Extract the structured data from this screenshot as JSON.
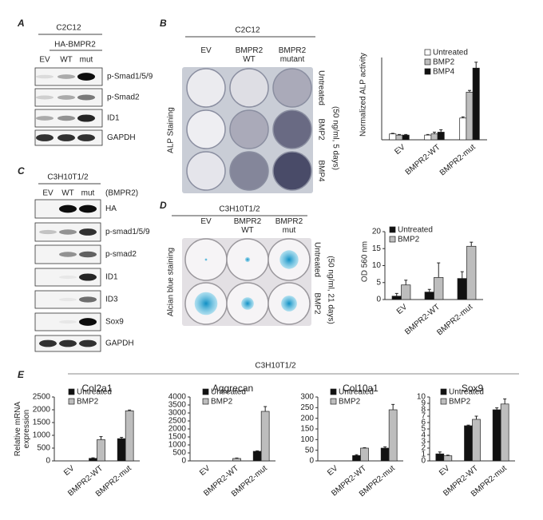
{
  "panel_labels": [
    "A",
    "B",
    "C",
    "D",
    "E"
  ],
  "blot_a": {
    "cell_line": "C2C12",
    "construct": "HA-BMPR2",
    "lanes": [
      "EV",
      "WT",
      "mut"
    ],
    "rows": [
      "p-Smad1/5/9",
      "p-Smad2",
      "ID1",
      "GAPDH"
    ]
  },
  "blot_c": {
    "cell_line": "C3H10T1/2",
    "lanes": [
      "EV",
      "WT",
      "mut"
    ],
    "lane_note": "(BMPR2)",
    "rows": [
      "HA",
      "p-smad1/5/9",
      "p-smad2",
      "ID1",
      "ID3",
      "Sox9",
      "GAPDH"
    ]
  },
  "staining_b": {
    "cell_line": "C2C12",
    "columns": [
      "EV",
      "BMPR2 WT",
      "BMPR2 mutant"
    ],
    "rows": [
      "Untreated",
      "BMP2",
      "BMP4"
    ],
    "stain": "ALP Staining",
    "condition": "(50 ng/ml, 5 days)"
  },
  "staining_d": {
    "cell_line": "C3H10T1/2",
    "columns": [
      "EV",
      "BMPR2 WT",
      "BMPR2 mut"
    ],
    "rows": [
      "Untreated",
      "BMP2"
    ],
    "stain": "Alcian blue staining",
    "condition": "(50 ng/ml, 21 days)"
  },
  "panel_e": {
    "title": "C3H10T1/2"
  },
  "chart_data": [
    {
      "type": "bar",
      "ylabel": "Normalized ALP activity",
      "categories": [
        "EV",
        "BMPR2-WT",
        "BMPR2-mut"
      ],
      "ylim": [
        0,
        14
      ],
      "legend": "upper left",
      "series": [
        {
          "name": "Untreated",
          "color": "#ffffff",
          "values": [
            1.0,
            0.8,
            3.7
          ],
          "errors": [
            0.1,
            0.1,
            0.2
          ]
        },
        {
          "name": "BMP2",
          "color": "#bdbdbd",
          "values": [
            0.8,
            1.0,
            8.1
          ],
          "errors": [
            0.1,
            0.3,
            0.3
          ]
        },
        {
          "name": "BMP4",
          "color": "#111111",
          "values": [
            0.8,
            1.3,
            12.2
          ],
          "errors": [
            0.1,
            0.4,
            1.0
          ]
        }
      ]
    },
    {
      "type": "bar",
      "ylabel": "OD 560 nm",
      "categories": [
        "EV",
        "BMPR2-WT",
        "BMPR2-mut"
      ],
      "ylim": [
        0,
        20
      ],
      "yticks": [
        0,
        5,
        10,
        15,
        20
      ],
      "legend": "upper left",
      "series": [
        {
          "name": "Untreated",
          "color": "#111111",
          "values": [
            1.0,
            2.2,
            6.2
          ],
          "errors": [
            0.8,
            0.8,
            2.0
          ]
        },
        {
          "name": "BMP2",
          "color": "#bdbdbd",
          "values": [
            4.3,
            6.5,
            15.7
          ],
          "errors": [
            1.4,
            4.3,
            1.2
          ]
        }
      ]
    },
    {
      "type": "bar",
      "title": "Col2a1",
      "ylabel": "Relative mRNA expression",
      "categories": [
        "EV",
        "BMPR2-WT",
        "BMPR2-mut"
      ],
      "ylim": [
        0,
        2500
      ],
      "yticks": [
        0,
        500,
        1000,
        1500,
        2000,
        2500
      ],
      "legend": "upper left",
      "series": [
        {
          "name": "Untreated",
          "color": "#111111",
          "values": [
            0,
            100,
            870
          ],
          "errors": [
            0,
            20,
            50
          ]
        },
        {
          "name": "BMP2",
          "color": "#bdbdbd",
          "values": [
            0,
            830,
            1960
          ],
          "errors": [
            0,
            120,
            30
          ]
        }
      ]
    },
    {
      "type": "bar",
      "title": "Aggrecan",
      "categories": [
        "EV",
        "BMPR2-WT",
        "BMPR2-mut"
      ],
      "ylim": [
        0,
        4000
      ],
      "yticks": [
        0,
        500,
        1000,
        1500,
        2000,
        2500,
        3000,
        3500,
        4000
      ],
      "legend": "upper left",
      "series": [
        {
          "name": "Untreated",
          "color": "#111111",
          "values": [
            0,
            0,
            600
          ],
          "errors": [
            0,
            0,
            30
          ]
        },
        {
          "name": "BMP2",
          "color": "#bdbdbd",
          "values": [
            0,
            150,
            3100
          ],
          "errors": [
            0,
            30,
            300
          ]
        }
      ]
    },
    {
      "type": "bar",
      "title": "Col10a1",
      "categories": [
        "EV",
        "BMPR2-WT",
        "BMPR2-mut"
      ],
      "ylim": [
        0,
        300
      ],
      "yticks": [
        0,
        50,
        100,
        150,
        200,
        250,
        300
      ],
      "legend": "upper left",
      "series": [
        {
          "name": "Untreated",
          "color": "#111111",
          "values": [
            0,
            25,
            60
          ],
          "errors": [
            0,
            4,
            6
          ]
        },
        {
          "name": "BMP2",
          "color": "#bdbdbd",
          "values": [
            0,
            60,
            240
          ],
          "errors": [
            0,
            2,
            25
          ]
        }
      ]
    },
    {
      "type": "bar",
      "title": "Sox9",
      "categories": [
        "EV",
        "BMPR2-WT",
        "BMPR2-mut"
      ],
      "ylim": [
        0,
        10
      ],
      "yticks": [
        0,
        1,
        2,
        3,
        4,
        5,
        6,
        7,
        8,
        9,
        10
      ],
      "legend": "upper left",
      "series": [
        {
          "name": "Untreated",
          "color": "#111111",
          "values": [
            1.1,
            5.5,
            8.0
          ],
          "errors": [
            0.3,
            0.1,
            0.3
          ]
        },
        {
          "name": "BMP2",
          "color": "#bdbdbd",
          "values": [
            0.8,
            6.5,
            8.9
          ],
          "errors": [
            0.1,
            0.5,
            0.8
          ]
        }
      ]
    }
  ]
}
